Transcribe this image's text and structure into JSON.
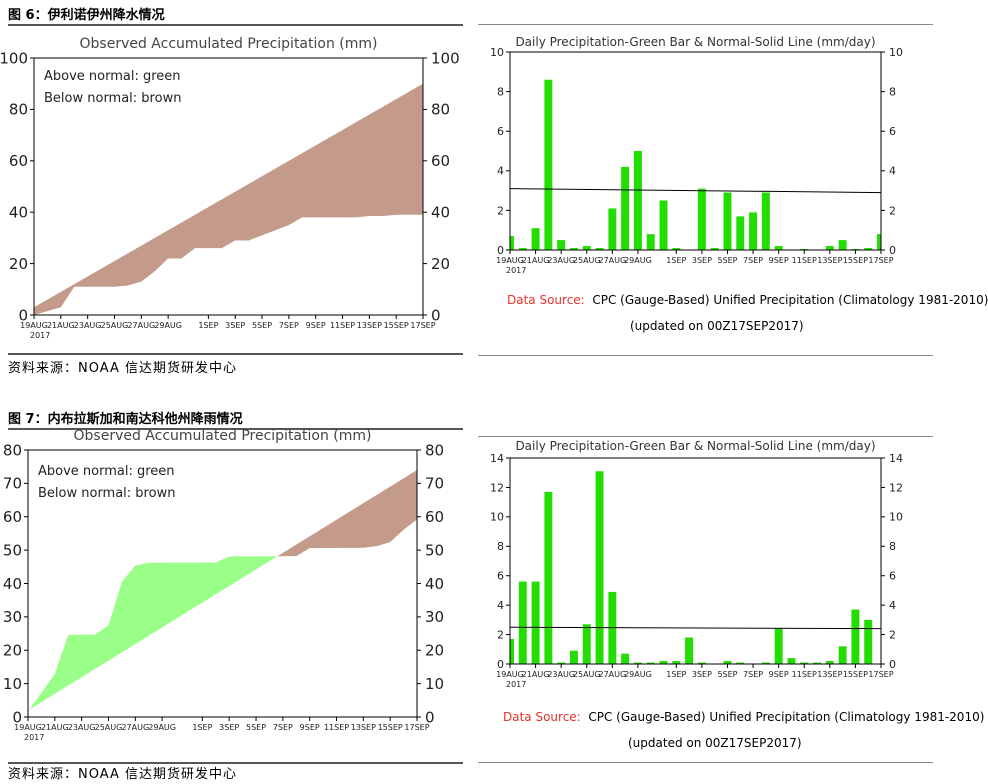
{
  "figures": [
    {
      "title": "图 6：伊利诺伊州降水情况",
      "source": "资料来源：NOAA    信达期货研发中心"
    },
    {
      "title": "图 7：内布拉斯加和南达科他州降雨情况",
      "source": "资料来源：NOAA    信达期货研发中心"
    }
  ],
  "daily_note": {
    "ds_label": "Data Source:",
    "ds_text": "CPC (Gauge-Based) Unified Precipitation (Climatology 1981-2010)",
    "updated": "(updated on 00Z17SEP2017)"
  },
  "colors": {
    "above": "#99ff88",
    "below": "#c49b8b",
    "daily_bar": "#22dd00",
    "ds_red": "#e8322a"
  },
  "chart_data": [
    {
      "type": "area",
      "title": "Observed Accumulated Precipitation (mm)",
      "legend": [
        "Above normal: green",
        "Below normal: brown"
      ],
      "ylim": [
        0,
        100
      ],
      "yticks": [
        0,
        20,
        40,
        60,
        80,
        100
      ],
      "xlim": [
        0,
        29
      ],
      "xticks": [
        {
          "x": 0,
          "label": "19AUG"
        },
        {
          "x": 2,
          "label": "21AUG"
        },
        {
          "x": 4,
          "label": "23AUG"
        },
        {
          "x": 6,
          "label": "25AUG"
        },
        {
          "x": 8,
          "label": "27AUG"
        },
        {
          "x": 10,
          "label": "29AUG"
        },
        {
          "x": 13,
          "label": "1SEP"
        },
        {
          "x": 15,
          "label": "3SEP"
        },
        {
          "x": 17,
          "label": "5SEP"
        },
        {
          "x": 19,
          "label": "7SEP"
        },
        {
          "x": 21,
          "label": "9SEP"
        },
        {
          "x": 23,
          "label": "11SEP"
        },
        {
          "x": 25,
          "label": "13SEP"
        },
        {
          "x": 27,
          "label": "15SEP"
        },
        {
          "x": 29,
          "label": "17SEP"
        }
      ],
      "year_label": "2017",
      "normal": [
        [
          0,
          3
        ],
        [
          29,
          90
        ]
      ],
      "observed": [
        [
          0,
          0
        ],
        [
          2,
          3
        ],
        [
          3,
          11
        ],
        [
          4,
          11
        ],
        [
          5,
          11
        ],
        [
          6,
          11
        ],
        [
          7,
          11.5
        ],
        [
          8,
          13
        ],
        [
          9,
          17
        ],
        [
          10,
          22
        ],
        [
          11,
          22
        ],
        [
          12,
          26
        ],
        [
          14,
          26
        ],
        [
          15,
          29
        ],
        [
          16,
          29
        ],
        [
          17,
          31
        ],
        [
          18,
          33
        ],
        [
          19,
          35
        ],
        [
          20,
          38
        ],
        [
          24,
          38
        ],
        [
          25,
          38.5
        ],
        [
          26,
          38.5
        ],
        [
          27,
          39
        ],
        [
          29,
          39
        ]
      ]
    },
    {
      "type": "bar",
      "title": "Daily Precipitation-Green Bar & Normal-Solid Line (mm/day)",
      "ylim": [
        0,
        10
      ],
      "yticks": [
        0,
        2,
        4,
        6,
        8,
        10
      ],
      "xlim": [
        0,
        29
      ],
      "xticks": [
        {
          "x": 0,
          "label": "19AUG"
        },
        {
          "x": 2,
          "label": "21AUG"
        },
        {
          "x": 4,
          "label": "23AUG"
        },
        {
          "x": 6,
          "label": "25AUG"
        },
        {
          "x": 8,
          "label": "27AUG"
        },
        {
          "x": 10,
          "label": "29AUG"
        },
        {
          "x": 13,
          "label": "1SEP"
        },
        {
          "x": 15,
          "label": "3SEP"
        },
        {
          "x": 17,
          "label": "5SEP"
        },
        {
          "x": 19,
          "label": "7SEP"
        },
        {
          "x": 21,
          "label": "9SEP"
        },
        {
          "x": 23,
          "label": "11SEP"
        },
        {
          "x": 25,
          "label": "13SEP"
        },
        {
          "x": 27,
          "label": "15SEP"
        },
        {
          "x": 29,
          "label": "17SEP"
        }
      ],
      "year_label": "2017",
      "values": [
        0.7,
        0.1,
        1.1,
        8.6,
        0.5,
        0.1,
        0.2,
        0.1,
        2.1,
        4.2,
        5.0,
        0.8,
        2.5,
        0.1,
        0.0,
        3.1,
        0.1,
        2.9,
        1.7,
        1.9,
        2.9,
        0.2,
        0.0,
        0.05,
        0.0,
        0.2,
        0.5,
        0.05,
        0.1,
        0.8
      ],
      "normal": [
        [
          0,
          3.1
        ],
        [
          29,
          2.9
        ]
      ]
    },
    {
      "type": "area",
      "title": "Observed Accumulated Precipitation (mm)",
      "legend": [
        "Above normal: green",
        "Below normal: brown"
      ],
      "ylim": [
        0,
        80
      ],
      "yticks": [
        0,
        10,
        20,
        30,
        40,
        50,
        60,
        70,
        80
      ],
      "xlim": [
        0,
        29
      ],
      "xticks": [
        {
          "x": 0,
          "label": "19AUG"
        },
        {
          "x": 2,
          "label": "21AUG"
        },
        {
          "x": 4,
          "label": "23AUG"
        },
        {
          "x": 6,
          "label": "25AUG"
        },
        {
          "x": 8,
          "label": "27AUG"
        },
        {
          "x": 10,
          "label": "29AUG"
        },
        {
          "x": 13,
          "label": "1SEP"
        },
        {
          "x": 15,
          "label": "3SEP"
        },
        {
          "x": 17,
          "label": "5SEP"
        },
        {
          "x": 19,
          "label": "7SEP"
        },
        {
          "x": 21,
          "label": "9SEP"
        },
        {
          "x": 23,
          "label": "11SEP"
        },
        {
          "x": 25,
          "label": "13SEP"
        },
        {
          "x": 27,
          "label": "15SEP"
        },
        {
          "x": 29,
          "label": "17SEP"
        }
      ],
      "year_label": "2017",
      "normal": [
        [
          0,
          2
        ],
        [
          29,
          74
        ]
      ],
      "observed": [
        [
          0,
          1.7
        ],
        [
          1,
          7.3
        ],
        [
          2,
          12.9
        ],
        [
          3,
          24.6
        ],
        [
          5,
          24.7
        ],
        [
          6,
          27.4
        ],
        [
          7,
          40.5
        ],
        [
          8,
          45.4
        ],
        [
          9,
          46.2
        ],
        [
          14,
          46.3
        ],
        [
          15,
          48.1
        ],
        [
          20,
          48.2
        ],
        [
          21,
          50.6
        ],
        [
          25,
          50.7
        ],
        [
          26,
          51.2
        ],
        [
          27,
          52.4
        ],
        [
          28,
          56.1
        ],
        [
          29,
          59.2
        ]
      ]
    },
    {
      "type": "bar",
      "title": "Daily Precipitation-Green Bar & Normal-Solid Line (mm/day)",
      "ylim": [
        0,
        14
      ],
      "yticks": [
        0,
        2,
        4,
        6,
        8,
        10,
        12,
        14
      ],
      "xlim": [
        0,
        29
      ],
      "xticks": [
        {
          "x": 0,
          "label": "19AUG"
        },
        {
          "x": 2,
          "label": "21AUG"
        },
        {
          "x": 4,
          "label": "23AUG"
        },
        {
          "x": 6,
          "label": "25AUG"
        },
        {
          "x": 8,
          "label": "27AUG"
        },
        {
          "x": 10,
          "label": "29AUG"
        },
        {
          "x": 13,
          "label": "1SEP"
        },
        {
          "x": 15,
          "label": "3SEP"
        },
        {
          "x": 17,
          "label": "5SEP"
        },
        {
          "x": 19,
          "label": "7SEP"
        },
        {
          "x": 21,
          "label": "9SEP"
        },
        {
          "x": 23,
          "label": "11SEP"
        },
        {
          "x": 25,
          "label": "13SEP"
        },
        {
          "x": 27,
          "label": "15SEP"
        },
        {
          "x": 29,
          "label": "17SEP"
        }
      ],
      "year_label": "2017",
      "values": [
        1.7,
        5.6,
        5.6,
        11.7,
        0.1,
        0.9,
        2.7,
        13.1,
        4.9,
        0.7,
        0.1,
        0.1,
        0.2,
        0.2,
        1.8,
        0.1,
        0.0,
        0.2,
        0.1,
        0.0,
        0.1,
        2.4,
        0.4,
        0.1,
        0.1,
        0.2,
        1.2,
        3.7,
        3.0,
        0.0
      ],
      "normal": [
        [
          0,
          2.5
        ],
        [
          29,
          2.4
        ]
      ]
    }
  ]
}
